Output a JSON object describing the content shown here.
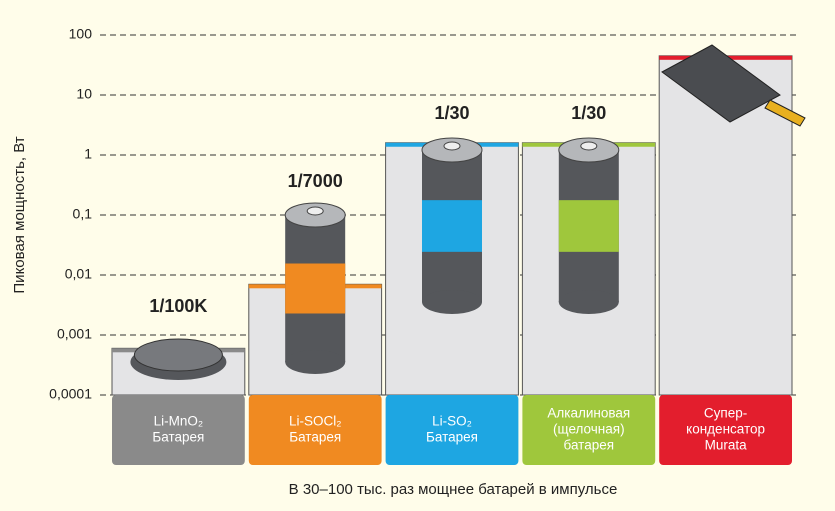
{
  "chart_data": {
    "type": "bar",
    "y_label": "Пиковая мощность, Вт",
    "x_label": "В 30–100 тыс. раз мощнее батарей в импульсе",
    "categories": [
      [
        "Li-MnO₂",
        "Батарея"
      ],
      [
        "Li-SOCl₂",
        "Батарея"
      ],
      [
        "Li-SO₂",
        "Батарея"
      ],
      [
        "Алкалиновая",
        "(щелочная)",
        "батарея"
      ],
      [
        "Супер-",
        "конденсатор",
        "Murata"
      ]
    ],
    "values": [
      0.0006,
      0.007,
      1.6,
      1.6,
      45
    ],
    "colors": [
      "#8a8a8a",
      "#f08a21",
      "#1ea6e2",
      "#9fc73c",
      "#e31e2d"
    ],
    "annotations": [
      "1/100K",
      "1/7000",
      "1/30",
      "1/30"
    ],
    "log_scale": true,
    "ylim": [
      0.0001,
      100
    ],
    "yticks": [
      {
        "value": 0.0001,
        "label": "0,0001"
      },
      {
        "value": 0.001,
        "label": "0,001"
      },
      {
        "value": 0.01,
        "label": "0,01"
      },
      {
        "value": 0.1,
        "label": "0,1"
      },
      1,
      10,
      100
    ],
    "grid": true
  }
}
